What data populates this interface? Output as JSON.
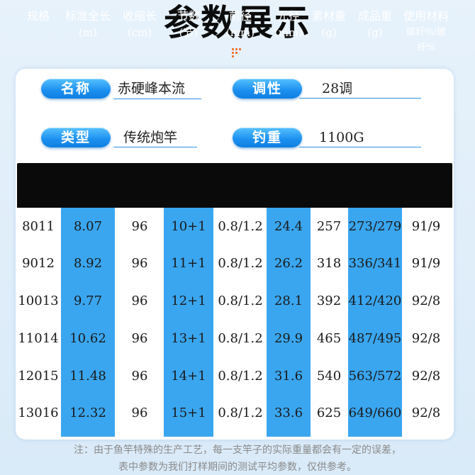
{
  "title": "参数展示",
  "specs": {
    "name_label": "名称",
    "name_value": "赤硬峰本流",
    "action_label": "调性",
    "action_value": "28调",
    "type_label": "类型",
    "type_value": "传统炮竿",
    "weight_label": "钓重",
    "weight_value": "1100G"
  },
  "table": {
    "headers": [
      {
        "l1": "规格",
        "l2": ""
      },
      {
        "l1": "标准全长",
        "l2": "(m)"
      },
      {
        "l1": "收缩长",
        "l2": "(cm)"
      },
      {
        "l1": "节数",
        "l2": "(节)"
      },
      {
        "l1": "前径",
        "l2": "(mm)"
      },
      {
        "l1": "元径",
        "l2": "(mm)"
      },
      {
        "l1": "素材重",
        "l2": "(g)"
      },
      {
        "l1": "成品重",
        "l2": "(g)"
      },
      {
        "l1": "使用材料",
        "l2": "碳纤%/玻纤%"
      }
    ],
    "rows": [
      [
        "8011",
        "8.07",
        "96",
        "10+1",
        "0.8/1.2",
        "24.4",
        "257",
        "273/279",
        "91/9"
      ],
      [
        "9012",
        "8.92",
        "96",
        "11+1",
        "0.8/1.2",
        "26.2",
        "318",
        "336/341",
        "91/9"
      ],
      [
        "10013",
        "9.77",
        "96",
        "12+1",
        "0.8/1.2",
        "28.1",
        "392",
        "412/420",
        "92/8"
      ],
      [
        "11014",
        "10.62",
        "96",
        "13+1",
        "0.8/1.2",
        "29.9",
        "465",
        "487/495",
        "92/8"
      ],
      [
        "12015",
        "11.48",
        "96",
        "14+1",
        "0.8/1.2",
        "31.6",
        "540",
        "563/572",
        "92/8"
      ],
      [
        "13016",
        "12.32",
        "96",
        "15+1",
        "0.8/1.2",
        "33.6",
        "625",
        "649/660",
        "92/8"
      ]
    ]
  },
  "note_line1": "注：由于鱼竿特殊的生产工艺，每一支竿子的实际重量都会有一定的误差，",
  "note_line2": "表中参数为我们打样期间的测试平均参数，仅供参考。",
  "colors": {
    "accent_blue": "#3aa6f0",
    "header_bg": "#0a0a0a",
    "dot_orange": "#f26b21"
  }
}
